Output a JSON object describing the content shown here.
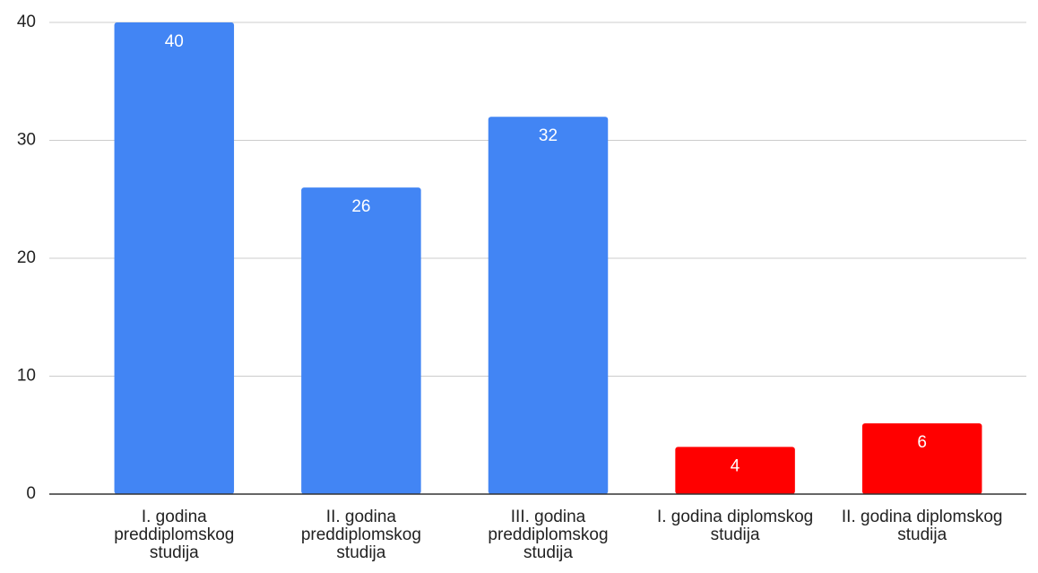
{
  "chart_data": {
    "type": "bar",
    "categories": [
      "I. godina preddiplomskog studija",
      "II. godina preddiplomskog studija",
      "III. godina preddiplomskog studija",
      "I. godina diplomskog studija",
      "II. godina diplomskog studija"
    ],
    "values": [
      40,
      26,
      32,
      4,
      6
    ],
    "colors": [
      "#4285f4",
      "#4285f4",
      "#4285f4",
      "#ff0000",
      "#ff0000"
    ],
    "ylim": [
      0,
      40
    ],
    "yticks": [
      0,
      10,
      20,
      30,
      40
    ],
    "grid": true
  }
}
